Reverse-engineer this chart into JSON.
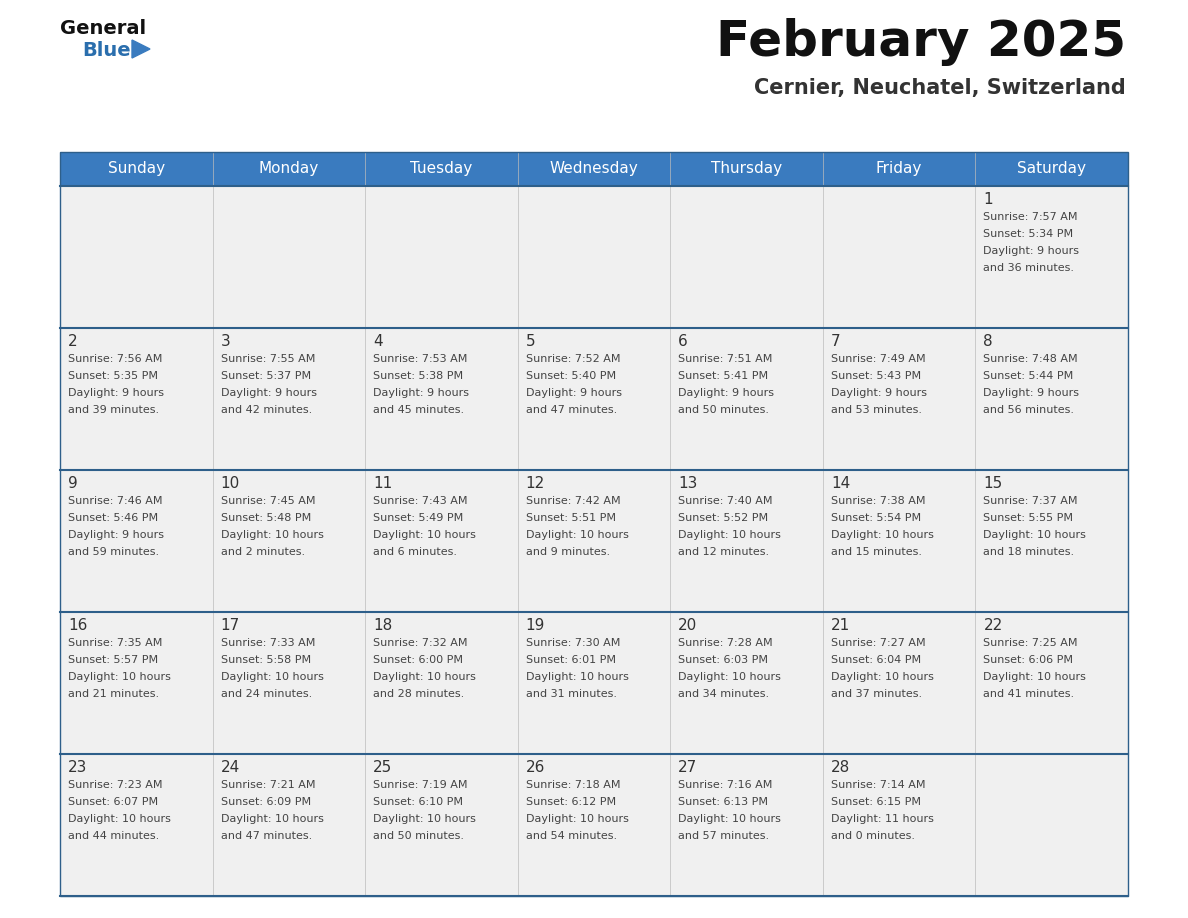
{
  "title": "February 2025",
  "subtitle": "Cernier, Neuchatel, Switzerland",
  "days_of_week": [
    "Sunday",
    "Monday",
    "Tuesday",
    "Wednesday",
    "Thursday",
    "Friday",
    "Saturday"
  ],
  "header_bg": "#3a7bbf",
  "header_text": "#ffffff",
  "cell_bg": "#f0f0f0",
  "separator_color": "#2e5f8a",
  "day_num_color": "#333333",
  "text_color": "#444444",
  "title_color": "#111111",
  "subtitle_color": "#333333",
  "logo_general_color": "#111111",
  "logo_blue_color": "#2a6ead",
  "logo_triangle_color": "#3a7bbf",
  "calendar_data": [
    [
      {
        "day": null
      },
      {
        "day": null
      },
      {
        "day": null
      },
      {
        "day": null
      },
      {
        "day": null
      },
      {
        "day": null
      },
      {
        "day": 1,
        "sunrise": "7:57 AM",
        "sunset": "5:34 PM",
        "daylight": "9 hours and 36 minutes."
      }
    ],
    [
      {
        "day": 2,
        "sunrise": "7:56 AM",
        "sunset": "5:35 PM",
        "daylight": "9 hours and 39 minutes."
      },
      {
        "day": 3,
        "sunrise": "7:55 AM",
        "sunset": "5:37 PM",
        "daylight": "9 hours and 42 minutes."
      },
      {
        "day": 4,
        "sunrise": "7:53 AM",
        "sunset": "5:38 PM",
        "daylight": "9 hours and 45 minutes."
      },
      {
        "day": 5,
        "sunrise": "7:52 AM",
        "sunset": "5:40 PM",
        "daylight": "9 hours and 47 minutes."
      },
      {
        "day": 6,
        "sunrise": "7:51 AM",
        "sunset": "5:41 PM",
        "daylight": "9 hours and 50 minutes."
      },
      {
        "day": 7,
        "sunrise": "7:49 AM",
        "sunset": "5:43 PM",
        "daylight": "9 hours and 53 minutes."
      },
      {
        "day": 8,
        "sunrise": "7:48 AM",
        "sunset": "5:44 PM",
        "daylight": "9 hours and 56 minutes."
      }
    ],
    [
      {
        "day": 9,
        "sunrise": "7:46 AM",
        "sunset": "5:46 PM",
        "daylight": "9 hours and 59 minutes."
      },
      {
        "day": 10,
        "sunrise": "7:45 AM",
        "sunset": "5:48 PM",
        "daylight": "10 hours and 2 minutes."
      },
      {
        "day": 11,
        "sunrise": "7:43 AM",
        "sunset": "5:49 PM",
        "daylight": "10 hours and 6 minutes."
      },
      {
        "day": 12,
        "sunrise": "7:42 AM",
        "sunset": "5:51 PM",
        "daylight": "10 hours and 9 minutes."
      },
      {
        "day": 13,
        "sunrise": "7:40 AM",
        "sunset": "5:52 PM",
        "daylight": "10 hours and 12 minutes."
      },
      {
        "day": 14,
        "sunrise": "7:38 AM",
        "sunset": "5:54 PM",
        "daylight": "10 hours and 15 minutes."
      },
      {
        "day": 15,
        "sunrise": "7:37 AM",
        "sunset": "5:55 PM",
        "daylight": "10 hours and 18 minutes."
      }
    ],
    [
      {
        "day": 16,
        "sunrise": "7:35 AM",
        "sunset": "5:57 PM",
        "daylight": "10 hours and 21 minutes."
      },
      {
        "day": 17,
        "sunrise": "7:33 AM",
        "sunset": "5:58 PM",
        "daylight": "10 hours and 24 minutes."
      },
      {
        "day": 18,
        "sunrise": "7:32 AM",
        "sunset": "6:00 PM",
        "daylight": "10 hours and 28 minutes."
      },
      {
        "day": 19,
        "sunrise": "7:30 AM",
        "sunset": "6:01 PM",
        "daylight": "10 hours and 31 minutes."
      },
      {
        "day": 20,
        "sunrise": "7:28 AM",
        "sunset": "6:03 PM",
        "daylight": "10 hours and 34 minutes."
      },
      {
        "day": 21,
        "sunrise": "7:27 AM",
        "sunset": "6:04 PM",
        "daylight": "10 hours and 37 minutes."
      },
      {
        "day": 22,
        "sunrise": "7:25 AM",
        "sunset": "6:06 PM",
        "daylight": "10 hours and 41 minutes."
      }
    ],
    [
      {
        "day": 23,
        "sunrise": "7:23 AM",
        "sunset": "6:07 PM",
        "daylight": "10 hours and 44 minutes."
      },
      {
        "day": 24,
        "sunrise": "7:21 AM",
        "sunset": "6:09 PM",
        "daylight": "10 hours and 47 minutes."
      },
      {
        "day": 25,
        "sunrise": "7:19 AM",
        "sunset": "6:10 PM",
        "daylight": "10 hours and 50 minutes."
      },
      {
        "day": 26,
        "sunrise": "7:18 AM",
        "sunset": "6:12 PM",
        "daylight": "10 hours and 54 minutes."
      },
      {
        "day": 27,
        "sunrise": "7:16 AM",
        "sunset": "6:13 PM",
        "daylight": "10 hours and 57 minutes."
      },
      {
        "day": 28,
        "sunrise": "7:14 AM",
        "sunset": "6:15 PM",
        "daylight": "11 hours and 0 minutes."
      },
      {
        "day": null
      }
    ]
  ]
}
